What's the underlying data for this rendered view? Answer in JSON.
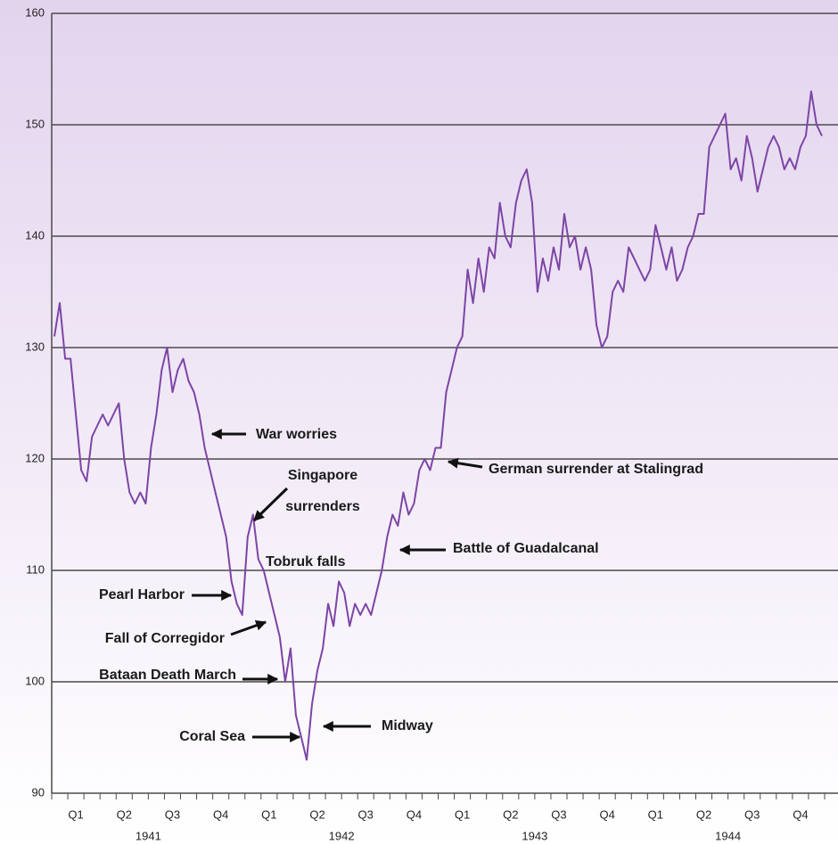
{
  "chart_data": {
    "type": "line",
    "categories": [
      null,
      null,
      null,
      null,
      "Q1",
      null,
      null,
      null,
      null,
      null,
      null,
      null,
      null,
      "Q2",
      null,
      null,
      null,
      null,
      null,
      null,
      null,
      null,
      "Q3",
      null,
      null,
      null,
      null,
      null,
      null,
      null,
      null,
      "Q4",
      null,
      null,
      null,
      null,
      null,
      null,
      null,
      null,
      "Q1",
      null,
      null,
      null,
      null,
      null,
      null,
      null,
      null,
      "Q2",
      null,
      null,
      null,
      null,
      null,
      null,
      null,
      null,
      "Q3",
      null,
      null,
      null,
      null,
      null,
      null,
      null,
      null,
      "Q4",
      null,
      null,
      null,
      null,
      null,
      null,
      null,
      null,
      "Q1",
      null,
      null,
      null,
      null,
      null,
      null,
      null,
      null,
      "Q2",
      null,
      null,
      null,
      null,
      null,
      null,
      null,
      null,
      "Q3",
      null,
      null,
      null,
      null,
      null,
      null,
      null,
      null,
      "Q4",
      null,
      null,
      null,
      null,
      null,
      null,
      null,
      null,
      "Q1",
      null,
      null,
      null,
      null,
      null,
      null,
      null,
      null,
      "Q2",
      null,
      null,
      null,
      null,
      null,
      null,
      null,
      null,
      "Q3",
      null,
      null,
      null,
      null,
      null,
      null,
      null,
      null,
      "Q4",
      null,
      null,
      null,
      null
    ],
    "years": [
      "1941",
      "1942",
      "1943",
      "1944"
    ],
    "series": [
      {
        "color": "#7d45a6",
        "values": [
          131,
          134,
          129,
          129,
          124,
          119,
          118,
          122,
          123,
          124,
          123,
          124,
          125,
          120,
          117,
          116,
          117,
          116,
          121,
          124,
          128,
          130,
          126,
          128,
          129,
          127,
          126,
          124,
          121,
          119,
          117,
          115,
          113,
          109,
          107,
          106,
          113,
          115,
          111,
          110,
          108,
          106,
          104,
          100,
          103,
          97,
          95,
          93,
          98,
          101,
          103,
          107,
          105,
          109,
          108,
          105,
          107,
          106,
          107,
          106,
          108,
          110,
          113,
          115,
          114,
          117,
          115,
          116,
          119,
          120,
          119,
          121,
          121,
          126,
          128,
          130,
          131,
          137,
          134,
          138,
          135,
          139,
          138,
          143,
          140,
          139,
          143,
          145,
          146,
          143,
          135,
          138,
          136,
          139,
          137,
          142,
          139,
          140,
          137,
          139,
          137,
          132,
          130,
          131,
          135,
          136,
          135,
          139,
          138,
          137,
          136,
          137,
          141,
          139,
          137,
          139,
          136,
          137,
          139,
          140,
          142,
          142,
          148,
          149,
          150,
          151,
          146,
          147,
          145,
          149,
          147,
          144,
          146,
          148,
          149,
          148,
          146,
          147,
          146,
          148,
          149,
          153,
          150,
          149
        ]
      }
    ],
    "ylim": [
      90,
      160
    ],
    "yticks": [
      90,
      100,
      110,
      120,
      130,
      140,
      150,
      160
    ],
    "grid": true,
    "annotations": [
      {
        "lines": [
          "War worries"
        ]
      },
      {
        "lines": [
          "Singapore",
          "surrenders"
        ]
      },
      {
        "lines": [
          "Tobruk falls"
        ]
      },
      {
        "lines": [
          "Pearl Harbor"
        ]
      },
      {
        "lines": [
          "Fall of Corregidor"
        ]
      },
      {
        "lines": [
          "Bataan Death March"
        ]
      },
      {
        "lines": [
          "Coral Sea"
        ]
      },
      {
        "lines": [
          "Midway"
        ]
      },
      {
        "lines": [
          "Battle of Guadalcanal"
        ]
      },
      {
        "lines": [
          "German surrender at Stalingrad"
        ]
      }
    ]
  }
}
